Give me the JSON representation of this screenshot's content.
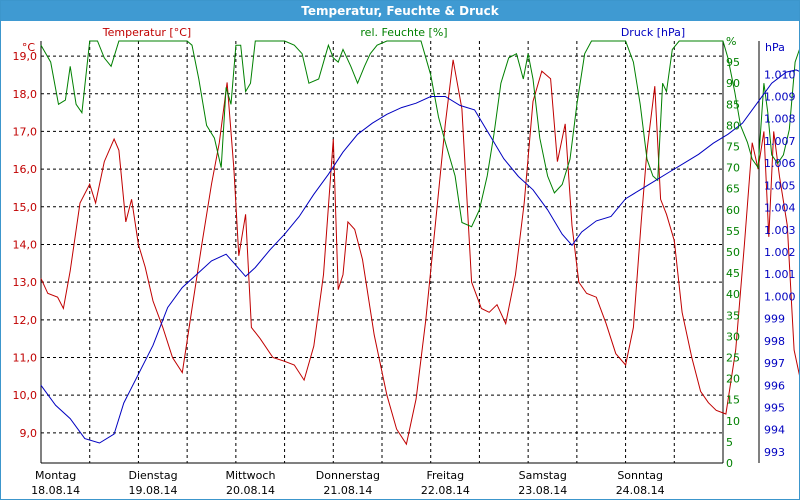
{
  "window": {
    "title": "Temperatur, Feuchte & Druck"
  },
  "colors": {
    "temperature": "#c00000",
    "humidity": "#008000",
    "pressure": "#0000c0",
    "grid": "#000000",
    "titlebar": "#3f9ad2"
  },
  "chart_data": {
    "type": "line",
    "title": "Temperatur, Feuchte & Druck",
    "grid": true,
    "x": {
      "range": [
        "18.08.14 00:00",
        "25.08.14 00:00"
      ],
      "ticks": [
        {
          "day": "Montag",
          "date": "18.08.14"
        },
        {
          "day": "Dienstag",
          "date": "19.08.14"
        },
        {
          "day": "Mittwoch",
          "date": "20.08.14"
        },
        {
          "day": "Donnerstag",
          "date": "21.08.14"
        },
        {
          "day": "Freitag",
          "date": "22.08.14"
        },
        {
          "day": "Samstag",
          "date": "23.08.14"
        },
        {
          "day": "Sonntag",
          "date": "24.08.14"
        }
      ]
    },
    "axes": {
      "temperature": {
        "label": "Temperatur [°C]",
        "unit": "°C",
        "range": [
          8.2,
          19.4
        ],
        "ticks": [
          "9,0",
          "10,0",
          "11,0",
          "12,0",
          "13,0",
          "14,0",
          "15,0",
          "16,0",
          "17,0",
          "18,0",
          "19,0"
        ]
      },
      "humidity": {
        "label": "rel. Feuchte [%]",
        "unit": "%",
        "range": [
          0,
          100
        ],
        "ticks": [
          "0",
          "5",
          "10",
          "15",
          "20",
          "25",
          "30",
          "35",
          "40",
          "45",
          "50",
          "55",
          "60",
          "65",
          "70",
          "75",
          "80",
          "85",
          "90",
          "95",
          "%"
        ]
      },
      "pressure": {
        "label": "Druck [hPa]",
        "unit": "hPa",
        "range": [
          992.5,
          1011.5
        ],
        "ticks": [
          "993",
          "994",
          "995",
          "996",
          "997",
          "998",
          "999",
          "1.000",
          "1.001",
          "1.002",
          "1.003",
          "1.004",
          "1.005",
          "1.006",
          "1.007",
          "1.008",
          "1.009",
          "1.010"
        ]
      }
    },
    "series": [
      {
        "name": "Temperatur [°C]",
        "axis": "temperature",
        "points": [
          [
            0.0,
            13.1
          ],
          [
            0.07,
            12.7
          ],
          [
            0.17,
            12.6
          ],
          [
            0.23,
            12.3
          ],
          [
            0.3,
            13.3
          ],
          [
            0.4,
            15.1
          ],
          [
            0.5,
            15.6
          ],
          [
            0.56,
            15.1
          ],
          [
            0.65,
            16.2
          ],
          [
            0.75,
            16.8
          ],
          [
            0.8,
            16.5
          ],
          [
            0.87,
            14.6
          ],
          [
            0.93,
            15.2
          ],
          [
            1.0,
            14.0
          ],
          [
            1.07,
            13.4
          ],
          [
            1.15,
            12.5
          ],
          [
            1.25,
            11.8
          ],
          [
            1.35,
            11.0
          ],
          [
            1.45,
            10.6
          ],
          [
            1.55,
            12.3
          ],
          [
            1.65,
            14.0
          ],
          [
            1.75,
            15.6
          ],
          [
            1.83,
            16.7
          ],
          [
            1.91,
            18.3
          ],
          [
            1.98,
            16.0
          ],
          [
            2.03,
            13.7
          ],
          [
            2.1,
            14.8
          ],
          [
            2.16,
            11.8
          ],
          [
            2.25,
            11.5
          ],
          [
            2.38,
            11.0
          ],
          [
            2.5,
            10.9
          ],
          [
            2.6,
            10.8
          ],
          [
            2.7,
            10.4
          ],
          [
            2.8,
            11.3
          ],
          [
            2.9,
            13.2
          ],
          [
            3.0,
            16.8
          ],
          [
            3.05,
            12.8
          ],
          [
            3.1,
            13.2
          ],
          [
            3.15,
            14.6
          ],
          [
            3.22,
            14.4
          ],
          [
            3.3,
            13.6
          ],
          [
            3.42,
            11.6
          ],
          [
            3.55,
            10.0
          ],
          [
            3.65,
            9.1
          ],
          [
            3.75,
            8.7
          ],
          [
            3.85,
            9.9
          ],
          [
            3.95,
            12.0
          ],
          [
            4.05,
            14.6
          ],
          [
            4.15,
            17.2
          ],
          [
            4.23,
            18.9
          ],
          [
            4.32,
            17.6
          ],
          [
            4.42,
            13.0
          ],
          [
            4.52,
            12.3
          ],
          [
            4.6,
            12.2
          ],
          [
            4.68,
            12.4
          ],
          [
            4.77,
            11.9
          ],
          [
            4.87,
            13.2
          ],
          [
            4.96,
            15.1
          ],
          [
            5.05,
            17.8
          ],
          [
            5.14,
            18.6
          ],
          [
            5.23,
            18.4
          ],
          [
            5.3,
            16.2
          ],
          [
            5.38,
            17.2
          ],
          [
            5.45,
            14.5
          ],
          [
            5.52,
            13.0
          ],
          [
            5.6,
            12.7
          ],
          [
            5.7,
            12.6
          ],
          [
            5.8,
            11.9
          ],
          [
            5.9,
            11.1
          ],
          [
            6.0,
            10.8
          ],
          [
            6.08,
            11.8
          ],
          [
            6.16,
            14.6
          ],
          [
            6.22,
            16.5
          ],
          [
            6.3,
            18.2
          ],
          [
            6.36,
            15.2
          ],
          [
            6.42,
            14.8
          ],
          [
            6.5,
            14.1
          ],
          [
            6.58,
            12.2
          ],
          [
            6.68,
            11.0
          ],
          [
            6.77,
            10.1
          ],
          [
            6.85,
            9.8
          ],
          [
            6.93,
            9.6
          ],
          [
            7.03,
            9.5
          ],
          [
            7.13,
            11.2
          ],
          [
            7.22,
            14.0
          ],
          [
            7.3,
            16.7
          ],
          [
            7.36,
            16.0
          ],
          [
            7.42,
            17.0
          ],
          [
            7.47,
            14.2
          ],
          [
            7.52,
            17.0
          ],
          [
            7.58,
            15.8
          ],
          [
            7.66,
            14.5
          ],
          [
            7.73,
            11.2
          ],
          [
            7.82,
            10.1
          ]
        ]
      },
      {
        "name": "rel. Feuchte [%]",
        "axis": "humidity",
        "points": [
          [
            0.0,
            99
          ],
          [
            0.1,
            95
          ],
          [
            0.18,
            85
          ],
          [
            0.25,
            86
          ],
          [
            0.3,
            94
          ],
          [
            0.36,
            85
          ],
          [
            0.42,
            83
          ],
          [
            0.5,
            100
          ],
          [
            0.58,
            100
          ],
          [
            0.65,
            96
          ],
          [
            0.72,
            94
          ],
          [
            0.8,
            100
          ],
          [
            1.5,
            100
          ],
          [
            1.55,
            99
          ],
          [
            1.62,
            91
          ],
          [
            1.7,
            80
          ],
          [
            1.78,
            77
          ],
          [
            1.85,
            70
          ],
          [
            1.9,
            89
          ],
          [
            1.95,
            85
          ],
          [
            2.0,
            99
          ],
          [
            2.05,
            99
          ],
          [
            2.1,
            88
          ],
          [
            2.15,
            90
          ],
          [
            2.2,
            100
          ],
          [
            2.5,
            100
          ],
          [
            2.6,
            99
          ],
          [
            2.68,
            97
          ],
          [
            2.75,
            90
          ],
          [
            2.85,
            91
          ],
          [
            2.95,
            99
          ],
          [
            3.0,
            96
          ],
          [
            3.05,
            95
          ],
          [
            3.1,
            98
          ],
          [
            3.18,
            94
          ],
          [
            3.25,
            90
          ],
          [
            3.32,
            94
          ],
          [
            3.38,
            97
          ],
          [
            3.45,
            99
          ],
          [
            3.55,
            100
          ],
          [
            3.9,
            100
          ],
          [
            4.0,
            92
          ],
          [
            4.08,
            82
          ],
          [
            4.15,
            76
          ],
          [
            4.25,
            68
          ],
          [
            4.32,
            57
          ],
          [
            4.42,
            56
          ],
          [
            4.5,
            60
          ],
          [
            4.58,
            68
          ],
          [
            4.65,
            78
          ],
          [
            4.72,
            90
          ],
          [
            4.8,
            96
          ],
          [
            4.88,
            97
          ],
          [
            4.95,
            91
          ],
          [
            5.0,
            97
          ],
          [
            5.05,
            91
          ],
          [
            5.12,
            77
          ],
          [
            5.2,
            68
          ],
          [
            5.27,
            64
          ],
          [
            5.35,
            66
          ],
          [
            5.43,
            72
          ],
          [
            5.5,
            85
          ],
          [
            5.58,
            97
          ],
          [
            5.65,
            100
          ],
          [
            6.0,
            100
          ],
          [
            6.08,
            95
          ],
          [
            6.15,
            85
          ],
          [
            6.22,
            72
          ],
          [
            6.28,
            68
          ],
          [
            6.33,
            67
          ],
          [
            6.38,
            90
          ],
          [
            6.42,
            88
          ],
          [
            6.48,
            98
          ],
          [
            6.55,
            100
          ],
          [
            7.0,
            100
          ],
          [
            7.05,
            96
          ],
          [
            7.12,
            88
          ],
          [
            7.18,
            80
          ],
          [
            7.25,
            76
          ],
          [
            7.3,
            72
          ],
          [
            7.36,
            70
          ],
          [
            7.42,
            90
          ],
          [
            7.46,
            83
          ],
          [
            7.5,
            73
          ],
          [
            7.56,
            71
          ],
          [
            7.62,
            73
          ],
          [
            7.68,
            79
          ],
          [
            7.74,
            95
          ],
          [
            7.8,
            99
          ],
          [
            7.85,
            100
          ]
        ]
      },
      {
        "name": "Druck [hPa]",
        "axis": "pressure",
        "points": [
          [
            0.0,
            996.0
          ],
          [
            0.15,
            995.1
          ],
          [
            0.3,
            994.5
          ],
          [
            0.45,
            993.6
          ],
          [
            0.6,
            993.4
          ],
          [
            0.75,
            993.8
          ],
          [
            0.85,
            995.2
          ],
          [
            1.0,
            996.5
          ],
          [
            1.15,
            997.8
          ],
          [
            1.3,
            999.5
          ],
          [
            1.45,
            1000.4
          ],
          [
            1.6,
            1001.0
          ],
          [
            1.75,
            1001.6
          ],
          [
            1.9,
            1001.9
          ],
          [
            2.0,
            1001.4
          ],
          [
            2.1,
            1000.9
          ],
          [
            2.2,
            1001.3
          ],
          [
            2.35,
            1002.1
          ],
          [
            2.5,
            1002.8
          ],
          [
            2.65,
            1003.6
          ],
          [
            2.8,
            1004.6
          ],
          [
            2.95,
            1005.5
          ],
          [
            3.1,
            1006.5
          ],
          [
            3.25,
            1007.3
          ],
          [
            3.4,
            1007.8
          ],
          [
            3.55,
            1008.2
          ],
          [
            3.7,
            1008.5
          ],
          [
            3.85,
            1008.7
          ],
          [
            4.0,
            1009.0
          ],
          [
            4.15,
            1009.0
          ],
          [
            4.3,
            1008.6
          ],
          [
            4.45,
            1008.4
          ],
          [
            4.6,
            1007.3
          ],
          [
            4.75,
            1006.2
          ],
          [
            4.9,
            1005.4
          ],
          [
            5.05,
            1004.8
          ],
          [
            5.2,
            1003.9
          ],
          [
            5.35,
            1002.8
          ],
          [
            5.45,
            1002.3
          ],
          [
            5.55,
            1002.9
          ],
          [
            5.7,
            1003.4
          ],
          [
            5.85,
            1003.6
          ],
          [
            6.0,
            1004.4
          ],
          [
            6.15,
            1004.8
          ],
          [
            6.3,
            1005.2
          ],
          [
            6.45,
            1005.6
          ],
          [
            6.6,
            1006.0
          ],
          [
            6.75,
            1006.4
          ],
          [
            6.9,
            1006.9
          ],
          [
            7.05,
            1007.3
          ],
          [
            7.2,
            1007.8
          ],
          [
            7.35,
            1008.7
          ],
          [
            7.5,
            1009.6
          ],
          [
            7.65,
            1010.1
          ],
          [
            7.75,
            1010.2
          ],
          [
            7.85,
            1010.0
          ]
        ]
      }
    ]
  }
}
